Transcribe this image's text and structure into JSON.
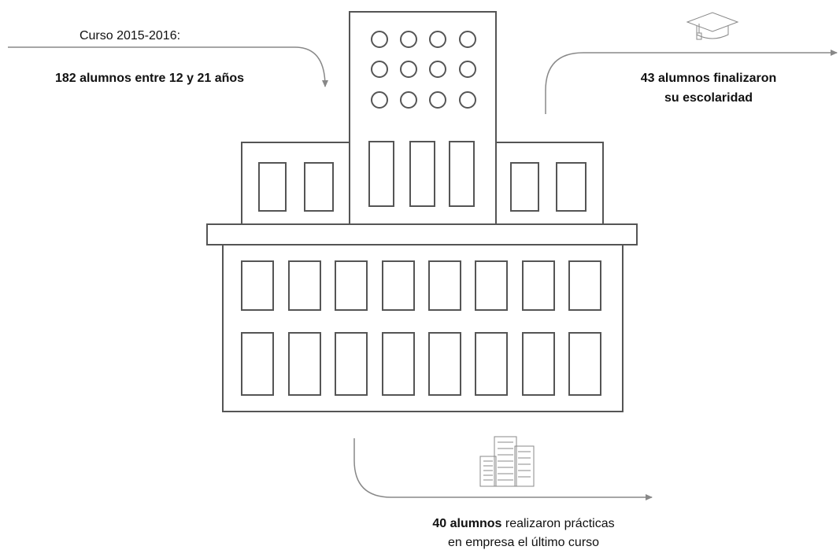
{
  "header": {
    "course": "Curso 2015-2016:",
    "students": "182 alumnos entre 12 y 21 años"
  },
  "graduated": {
    "lines": [
      "43 alumnos finalizaron",
      "su escolaridad"
    ]
  },
  "internships": {
    "highlight": "40 alumnos",
    "rest": "realizaron prácticas",
    "line2": "en empresa el último curso"
  }
}
